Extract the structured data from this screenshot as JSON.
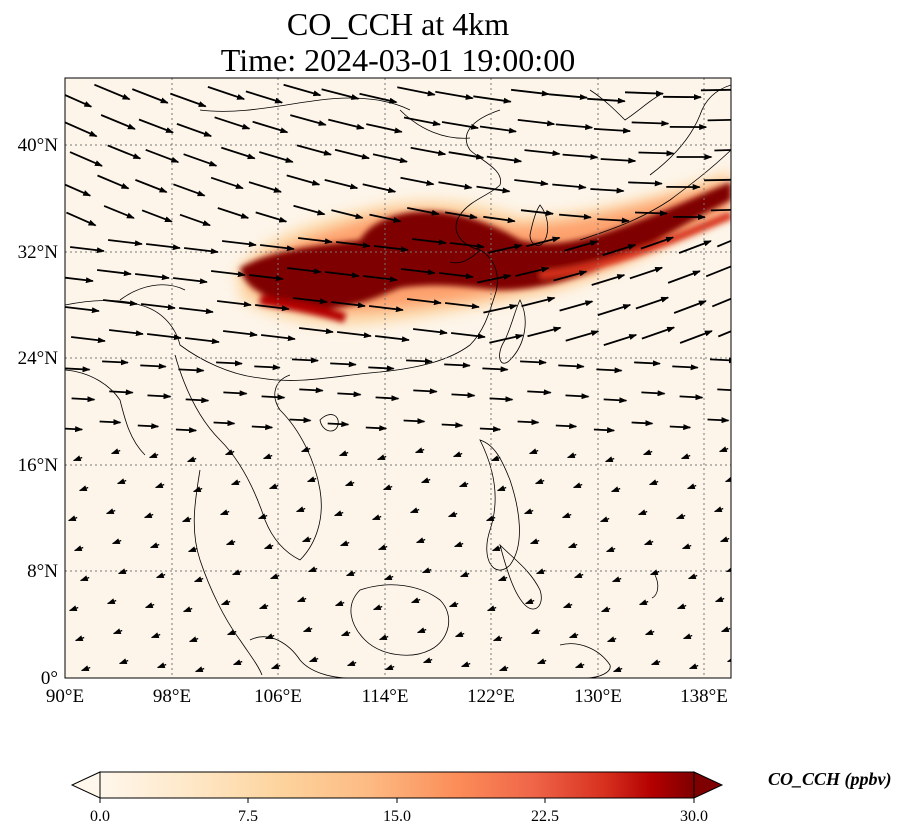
{
  "title_line1": "CO_CCH at 4km",
  "title_line2": "Time: 2024-03-01 19:00:00",
  "map": {
    "lon_range": [
      90,
      140
    ],
    "lat_range": [
      0,
      45
    ],
    "lon_ticks": [
      "90°E",
      "98°E",
      "106°E",
      "114°E",
      "122°E",
      "130°E",
      "138°E"
    ],
    "lat_ticks": [
      "0°",
      "8°N",
      "16°N",
      "24°N",
      "32°N",
      "40°N"
    ],
    "gridlines": true,
    "vectors": "wind arrows overlay"
  },
  "colorbar": {
    "label": "CO_CCH (ppbv)",
    "ticks": [
      "0.0",
      "7.5",
      "15.0",
      "22.5",
      "30.0"
    ],
    "range": [
      0,
      30
    ],
    "colormap": "OrRd",
    "extend": "both"
  },
  "colors": {
    "low": "#fff7ec",
    "mid": "#fc8d59",
    "high": "#7f0000"
  }
}
